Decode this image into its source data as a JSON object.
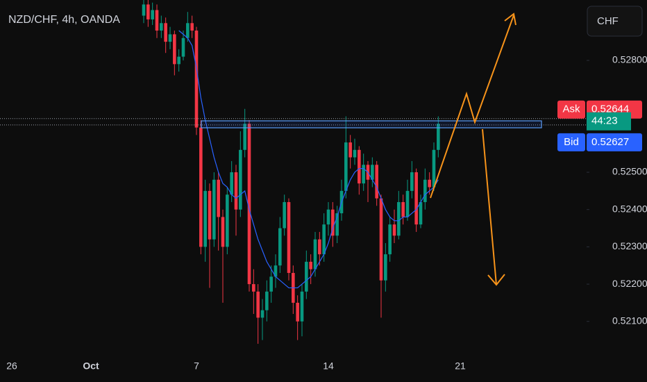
{
  "chart_data": {
    "type": "candlestick",
    "title": "NZD/CHF, 4h, OANDA",
    "currency": "CHF",
    "up_color": "#089981",
    "down_color": "#f23645",
    "categories": [
      "26",
      null,
      null,
      null,
      null,
      null,
      null,
      null,
      null,
      null,
      null,
      null,
      null,
      null,
      null,
      null,
      null,
      null,
      "Oct",
      null,
      null,
      null,
      null,
      null,
      null,
      null,
      null,
      null,
      null,
      null,
      null,
      null,
      null,
      null,
      null,
      null,
      null,
      null,
      null,
      null,
      null,
      null,
      "7",
      null,
      null,
      null,
      null,
      null,
      null,
      null,
      null,
      null,
      null,
      null,
      null,
      null,
      null,
      null,
      null,
      null,
      null,
      null,
      null,
      null,
      null,
      null,
      null,
      null,
      null,
      null,
      null,
      null,
      "14",
      null,
      null,
      null,
      null,
      null,
      null,
      null,
      null,
      null,
      null,
      null,
      null,
      null,
      null,
      null,
      null,
      null,
      null,
      null,
      null,
      null,
      null,
      null,
      null,
      null,
      null,
      null,
      null,
      null,
      "21"
    ],
    "open": [
      null,
      null,
      null,
      null,
      null,
      null,
      null,
      null,
      null,
      null,
      null,
      null,
      null,
      null,
      null,
      null,
      null,
      null,
      null,
      null,
      null,
      null,
      null,
      null,
      null,
      null,
      null,
      null,
      null,
      null,
      0.5292,
      0.5295,
      0.5291,
      0.52935,
      0.5288,
      0.529,
      0.5285,
      0.5287,
      0.5279,
      0.5281,
      0.5286,
      0.529,
      0.5288,
      0.5262,
      0.523,
      0.5245,
      0.5232,
      0.5248,
      0.5238,
      0.523,
      0.5244,
      0.525,
      0.524,
      0.5256,
      0.5263,
      0.522,
      0.5218,
      0.5211,
      0.5213,
      0.5218,
      0.5222,
      0.5225,
      0.5235,
      0.5242,
      0.5223,
      0.5215,
      0.521,
      0.5218,
      0.5226,
      0.5224,
      0.5232,
      0.5228,
      0.5236,
      0.524,
      0.5233,
      0.5239,
      0.5245,
      0.5258,
      0.5254,
      0.5256,
      0.5247,
      0.5252,
      0.5248,
      0.5252,
      0.5243,
      0.5221,
      0.5228,
      0.5236,
      0.5233,
      0.5242,
      0.5238,
      0.5245,
      0.525,
      0.5236,
      0.5242,
      0.5248,
      0.5246,
      0.5256,
      null,
      null,
      null,
      null,
      null
    ],
    "high": [
      null,
      null,
      null,
      null,
      null,
      null,
      null,
      null,
      null,
      null,
      null,
      null,
      null,
      null,
      null,
      null,
      null,
      null,
      null,
      null,
      null,
      null,
      null,
      null,
      null,
      null,
      null,
      null,
      null,
      null,
      0.52962,
      0.52962,
      0.52955,
      0.5295,
      0.5292,
      0.52915,
      0.5289,
      0.5288,
      0.5283,
      0.5288,
      0.5293,
      0.5292,
      0.5289,
      0.5264,
      0.5248,
      0.5247,
      0.525,
      0.525,
      0.524,
      0.5246,
      0.5253,
      0.5252,
      0.5261,
      0.5267,
      0.5264,
      0.5224,
      0.522,
      0.5216,
      0.5221,
      0.5225,
      0.5228,
      0.5238,
      0.5244,
      0.5243,
      0.5225,
      0.5217,
      0.522,
      0.5229,
      0.5228,
      0.5234,
      0.5234,
      0.5239,
      0.5242,
      0.5242,
      0.5241,
      0.5248,
      0.5265,
      0.526,
      0.5259,
      0.5257,
      0.5255,
      0.5253,
      0.5254,
      0.5253,
      0.5244,
      0.5231,
      0.5238,
      0.524,
      0.5245,
      0.5244,
      0.5248,
      0.5253,
      0.5251,
      0.5244,
      0.5251,
      0.525,
      0.5258,
      0.5265,
      null,
      null,
      null,
      null,
      null
    ],
    "low": [
      null,
      null,
      null,
      null,
      null,
      null,
      null,
      null,
      null,
      null,
      null,
      null,
      null,
      null,
      null,
      null,
      null,
      null,
      null,
      null,
      null,
      null,
      null,
      null,
      null,
      null,
      null,
      null,
      null,
      null,
      0.529,
      0.5289,
      0.52895,
      0.5286,
      0.5286,
      0.5282,
      0.5283,
      0.5276,
      0.5277,
      0.528,
      0.5285,
      0.5286,
      0.526,
      0.5228,
      0.5226,
      0.5219,
      0.523,
      0.5229,
      0.5215,
      0.5228,
      0.5242,
      0.5233,
      0.5238,
      0.5254,
      0.5218,
      0.5212,
      0.5204,
      0.5205,
      0.521,
      0.5215,
      0.5219,
      0.5223,
      0.5233,
      0.5221,
      0.5212,
      0.5205,
      0.5206,
      0.5216,
      0.522,
      0.5222,
      0.5225,
      0.5226,
      0.5233,
      0.523,
      0.5231,
      0.5237,
      0.5243,
      0.5251,
      0.5252,
      0.5244,
      0.5245,
      0.5242,
      0.5246,
      0.5241,
      0.5211,
      0.5218,
      0.5226,
      0.5231,
      0.5232,
      0.5236,
      0.5237,
      0.5243,
      0.5234,
      0.5235,
      0.524,
      0.5244,
      0.5245,
      0.5254,
      null,
      null,
      null,
      null,
      null
    ],
    "close": [
      null,
      null,
      null,
      null,
      null,
      null,
      null,
      null,
      null,
      null,
      null,
      null,
      null,
      null,
      null,
      null,
      null,
      null,
      null,
      null,
      null,
      null,
      null,
      null,
      null,
      null,
      null,
      null,
      null,
      null,
      0.5295,
      0.5291,
      0.52935,
      0.5288,
      0.529,
      0.5285,
      0.5287,
      0.5279,
      0.5281,
      0.5286,
      0.529,
      0.5288,
      0.5262,
      0.523,
      0.5245,
      0.5232,
      0.5248,
      0.5238,
      0.523,
      0.5244,
      0.525,
      0.524,
      0.5256,
      0.5263,
      0.522,
      0.5218,
      0.5211,
      0.5213,
      0.5218,
      0.5222,
      0.5225,
      0.5235,
      0.5242,
      0.5223,
      0.5215,
      0.521,
      0.5218,
      0.5226,
      0.5224,
      0.5232,
      0.5228,
      0.5236,
      0.524,
      0.5233,
      0.5239,
      0.5245,
      0.5258,
      0.5254,
      0.5256,
      0.5247,
      0.5252,
      0.5248,
      0.5252,
      0.5243,
      0.5221,
      0.5228,
      0.5236,
      0.5233,
      0.5242,
      0.5238,
      0.5245,
      0.525,
      0.5236,
      0.5242,
      0.5248,
      0.5246,
      0.5256,
      0.5263,
      null,
      null,
      null,
      null,
      null
    ],
    "ma": {
      "color": "#2962ff",
      "values": [
        null,
        null,
        null,
        null,
        null,
        null,
        null,
        null,
        null,
        null,
        null,
        null,
        null,
        null,
        null,
        null,
        null,
        null,
        null,
        null,
        null,
        null,
        null,
        null,
        null,
        null,
        null,
        null,
        null,
        null,
        null,
        null,
        null,
        null,
        null,
        null,
        null,
        null,
        0.5288,
        0.5287,
        0.5286,
        0.5284,
        0.5278,
        0.527,
        0.5264,
        0.5259,
        0.5254,
        0.525,
        0.5247,
        0.5246,
        0.5244,
        0.5243,
        0.5244,
        0.5245,
        0.524,
        0.5236,
        0.5232,
        0.5229,
        0.5226,
        0.5224,
        0.5222,
        0.5221,
        0.522,
        0.5219,
        0.5219,
        0.5219,
        0.522,
        0.5221,
        0.5222,
        0.5224,
        0.5226,
        0.5228,
        0.5231,
        0.5235,
        0.5238,
        0.5242,
        0.5245,
        0.5248,
        0.525,
        0.5251,
        0.5251,
        0.525,
        0.5248,
        0.5246,
        0.5243,
        0.524,
        0.5238,
        0.5237,
        0.5237,
        0.5238,
        0.5238,
        0.5239,
        0.524,
        0.5242,
        0.5244,
        0.5245,
        0.5246,
        0.5248,
        null,
        null,
        null,
        null,
        null
      ]
    },
    "ylim": [
      0.52012,
      0.52962
    ],
    "yticks": [
      {
        "value": 0.521,
        "label": "0.52100"
      },
      {
        "value": 0.522,
        "label": "0.52200"
      },
      {
        "value": 0.523,
        "label": "0.52300"
      },
      {
        "value": 0.524,
        "label": "0.52400"
      },
      {
        "value": 0.525,
        "label": "0.52500"
      },
      {
        "value": 0.528,
        "label": "0.52800"
      }
    ],
    "grid": false,
    "ask": {
      "label": "Ask",
      "value": 0.52644
    },
    "bid": {
      "label": "Bid",
      "value": 0.52627
    },
    "countdown": "44:23"
  }
}
